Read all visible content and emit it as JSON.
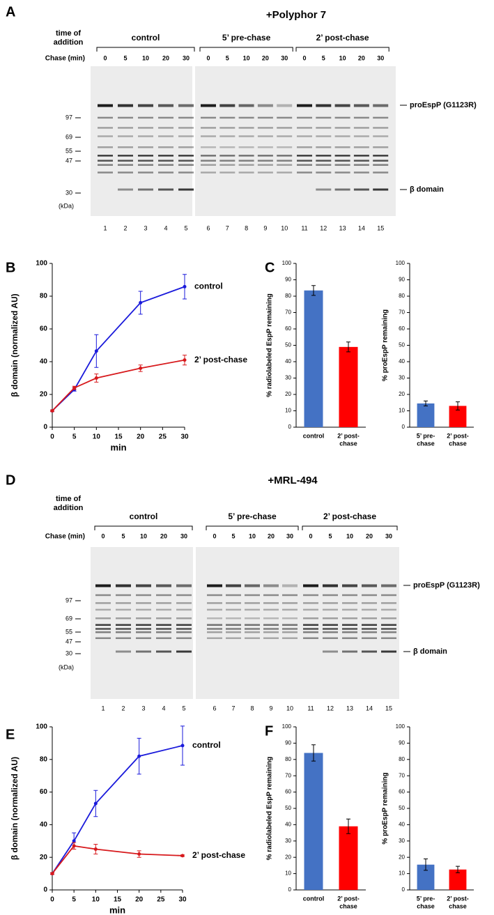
{
  "gels": [
    {
      "panel": "A",
      "title": "+Polyphor 7",
      "time_label": [
        "time of",
        "addition"
      ],
      "chase_label": "Chase (min)",
      "groups": [
        {
          "name": "control",
          "chase": [
            0,
            5,
            10,
            20,
            30
          ]
        },
        {
          "name": "5’ pre-chase",
          "chase": [
            0,
            5,
            10,
            20,
            30
          ]
        },
        {
          "name": "2’ post-chase",
          "chase": [
            0,
            5,
            10,
            20,
            30
          ]
        }
      ],
      "markers": [
        97,
        69,
        55,
        47,
        30
      ],
      "marker_unit": "(kDa)",
      "band_labels": [
        "proEspP (G1123R)",
        "β domain"
      ],
      "lanes": [
        1,
        2,
        3,
        4,
        5,
        6,
        7,
        8,
        9,
        10,
        11,
        12,
        13,
        14,
        15
      ]
    },
    {
      "panel": "D",
      "title": "+MRL-494",
      "time_label": [
        "time of",
        "addition"
      ],
      "chase_label": "Chase (min)",
      "groups": [
        {
          "name": "control",
          "chase": [
            0,
            5,
            10,
            20,
            30
          ]
        },
        {
          "name": "5’ pre-chase",
          "chase": [
            0,
            5,
            10,
            20,
            30
          ]
        },
        {
          "name": "2’ post-chase",
          "chase": [
            0,
            5,
            10,
            20,
            30
          ]
        }
      ],
      "markers": [
        97,
        69,
        55,
        47,
        30
      ],
      "marker_unit": "(kDa)",
      "band_labels": [
        "proEspP (G1123R)",
        "β domain"
      ],
      "lanes": [
        1,
        2,
        3,
        4,
        5,
        6,
        7,
        8,
        9,
        10,
        11,
        12,
        13,
        14,
        15
      ]
    }
  ],
  "chart_data": [
    {
      "panel": "B",
      "type": "line",
      "ylabel": "β domain (normalized AU)",
      "xlabel": "min",
      "x": [
        0,
        5,
        10,
        20,
        30
      ],
      "xlim": [
        0,
        30
      ],
      "xticks": [
        0,
        5,
        10,
        15,
        20,
        25,
        30
      ],
      "ylim": [
        0,
        100
      ],
      "yticks": [
        0,
        20,
        40,
        60,
        80,
        100
      ],
      "series": [
        {
          "name": "control",
          "color": "#1a1adb",
          "values": [
            10,
            23,
            46.5,
            76,
            85.8
          ],
          "errors": [
            0.5,
            1,
            10,
            7,
            7.5
          ]
        },
        {
          "name": "2’ post-chase",
          "color": "#d7191c",
          "values": [
            10,
            24,
            30,
            36,
            41
          ],
          "errors": [
            0.5,
            1,
            2.5,
            2,
            3
          ]
        }
      ]
    },
    {
      "panel": "C",
      "type": "bar",
      "ylabel": "% radiolabeled EspP remaining",
      "categories": [
        [
          "control"
        ],
        [
          "2’ post-",
          "chase"
        ]
      ],
      "values": [
        83.5,
        49
      ],
      "errors": [
        3,
        3
      ],
      "colors": [
        "#4472c4",
        "#ff0000"
      ],
      "ylim": [
        0,
        100
      ],
      "yticks": [
        0,
        10,
        20,
        30,
        40,
        50,
        60,
        70,
        80,
        90,
        100
      ]
    },
    {
      "type": "bar",
      "ylabel": "% proEspP remaining",
      "categories": [
        [
          "5’ pre-",
          "chase"
        ],
        [
          "2’ post-",
          "chase"
        ]
      ],
      "values": [
        14.5,
        13
      ],
      "errors": [
        1.5,
        2.5
      ],
      "colors": [
        "#4472c4",
        "#ff0000"
      ],
      "ylim": [
        0,
        100
      ],
      "yticks": [
        0,
        10,
        20,
        30,
        40,
        50,
        60,
        70,
        80,
        90,
        100
      ]
    },
    {
      "panel": "E",
      "type": "line",
      "ylabel": "β domain (normalized AU)",
      "xlabel": "min",
      "x": [
        0,
        5,
        10,
        20,
        30
      ],
      "xlim": [
        0,
        30
      ],
      "xticks": [
        0,
        5,
        10,
        15,
        20,
        25,
        30
      ],
      "ylim": [
        0,
        100
      ],
      "yticks": [
        0,
        20,
        40,
        60,
        80,
        100
      ],
      "series": [
        {
          "name": "control",
          "color": "#1a1adb",
          "values": [
            10,
            30,
            53,
            82,
            88.5
          ],
          "errors": [
            0.5,
            5,
            8,
            11,
            12
          ]
        },
        {
          "name": "2’ post-chase",
          "color": "#d7191c",
          "values": [
            10,
            27,
            25,
            22,
            21
          ],
          "errors": [
            0.5,
            2,
            3,
            2,
            0.5
          ]
        }
      ]
    },
    {
      "panel": "F",
      "type": "bar",
      "ylabel": "% radiolabeled EspP remaining",
      "categories": [
        [
          "control"
        ],
        [
          "2’ post-",
          "chase"
        ]
      ],
      "values": [
        84,
        39
      ],
      "errors": [
        5,
        4.5
      ],
      "colors": [
        "#4472c4",
        "#ff0000"
      ],
      "ylim": [
        0,
        100
      ],
      "yticks": [
        0,
        10,
        20,
        30,
        40,
        50,
        60,
        70,
        80,
        90,
        100
      ]
    },
    {
      "type": "bar",
      "ylabel": "% proEspP remaining",
      "categories": [
        [
          "5’ pre-",
          "chase"
        ],
        [
          "2’ post-",
          "chase"
        ]
      ],
      "values": [
        15.5,
        12.5
      ],
      "errors": [
        3.5,
        2
      ],
      "colors": [
        "#4472c4",
        "#ff0000"
      ],
      "ylim": [
        0,
        100
      ],
      "yticks": [
        0,
        10,
        20,
        30,
        40,
        50,
        60,
        70,
        80,
        90,
        100
      ]
    }
  ]
}
